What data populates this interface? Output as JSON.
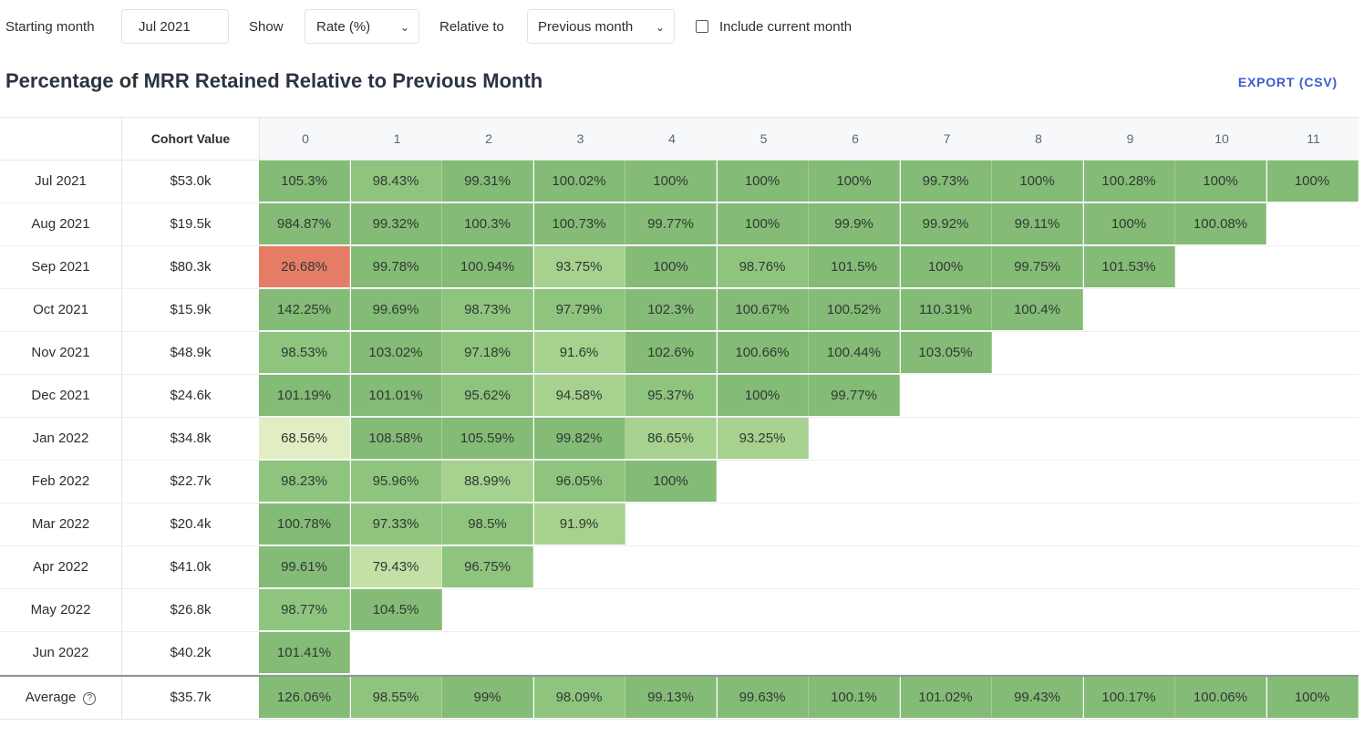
{
  "controls": {
    "starting_month_label": "Starting month",
    "starting_month_value": "Jul 2021",
    "show_label": "Show",
    "show_value": "Rate (%)",
    "relative_label": "Relative to",
    "relative_value": "Previous month",
    "include_label": "Include current month",
    "include_checked": false
  },
  "title": "Percentage of MRR Retained Relative to Previous Month",
  "export_label": "EXPORT (CSV)",
  "table": {
    "cohort_value_header": "Cohort Value",
    "columns": [
      "0",
      "1",
      "2",
      "3",
      "4",
      "5",
      "6",
      "7",
      "8",
      "9",
      "10",
      "11"
    ],
    "rows": [
      {
        "label": "Jul 2021",
        "value": "$53.0k",
        "cells": [
          "105.3%",
          "98.43%",
          "99.31%",
          "100.02%",
          "100%",
          "100%",
          "100%",
          "99.73%",
          "100%",
          "100.28%",
          "100%",
          "100%"
        ]
      },
      {
        "label": "Aug 2021",
        "value": "$19.5k",
        "cells": [
          "984.87%",
          "99.32%",
          "100.3%",
          "100.73%",
          "99.77%",
          "100%",
          "99.9%",
          "99.92%",
          "99.11%",
          "100%",
          "100.08%"
        ]
      },
      {
        "label": "Sep 2021",
        "value": "$80.3k",
        "cells": [
          "26.68%",
          "99.78%",
          "100.94%",
          "93.75%",
          "100%",
          "98.76%",
          "101.5%",
          "100%",
          "99.75%",
          "101.53%"
        ]
      },
      {
        "label": "Oct 2021",
        "value": "$15.9k",
        "cells": [
          "142.25%",
          "99.69%",
          "98.73%",
          "97.79%",
          "102.3%",
          "100.67%",
          "100.52%",
          "110.31%",
          "100.4%"
        ]
      },
      {
        "label": "Nov 2021",
        "value": "$48.9k",
        "cells": [
          "98.53%",
          "103.02%",
          "97.18%",
          "91.6%",
          "102.6%",
          "100.66%",
          "100.44%",
          "103.05%"
        ]
      },
      {
        "label": "Dec 2021",
        "value": "$24.6k",
        "cells": [
          "101.19%",
          "101.01%",
          "95.62%",
          "94.58%",
          "95.37%",
          "100%",
          "99.77%"
        ]
      },
      {
        "label": "Jan 2022",
        "value": "$34.8k",
        "cells": [
          "68.56%",
          "108.58%",
          "105.59%",
          "99.82%",
          "86.65%",
          "93.25%"
        ]
      },
      {
        "label": "Feb 2022",
        "value": "$22.7k",
        "cells": [
          "98.23%",
          "95.96%",
          "88.99%",
          "96.05%",
          "100%"
        ]
      },
      {
        "label": "Mar 2022",
        "value": "$20.4k",
        "cells": [
          "100.78%",
          "97.33%",
          "98.5%",
          "91.9%"
        ]
      },
      {
        "label": "Apr 2022",
        "value": "$41.0k",
        "cells": [
          "99.61%",
          "79.43%",
          "96.75%"
        ]
      },
      {
        "label": "May 2022",
        "value": "$26.8k",
        "cells": [
          "98.77%",
          "104.5%"
        ]
      },
      {
        "label": "Jun 2022",
        "value": "$40.2k",
        "cells": [
          "101.41%"
        ]
      }
    ],
    "average": {
      "label": "Average",
      "value": "$35.7k",
      "cells": [
        "126.06%",
        "98.55%",
        "99%",
        "98.09%",
        "99.13%",
        "99.63%",
        "100.1%",
        "101.02%",
        "99.43%",
        "100.17%",
        "100.06%",
        "100%"
      ]
    }
  },
  "colors": {
    "strong_green": "#84bb76",
    "green": "#8fc47f",
    "mid_green": "#a6d18f",
    "light_green": "#c3e0a6",
    "pale_green": "#e1edc2",
    "red": "#e57d66",
    "accent": "#3d5ad1"
  }
}
